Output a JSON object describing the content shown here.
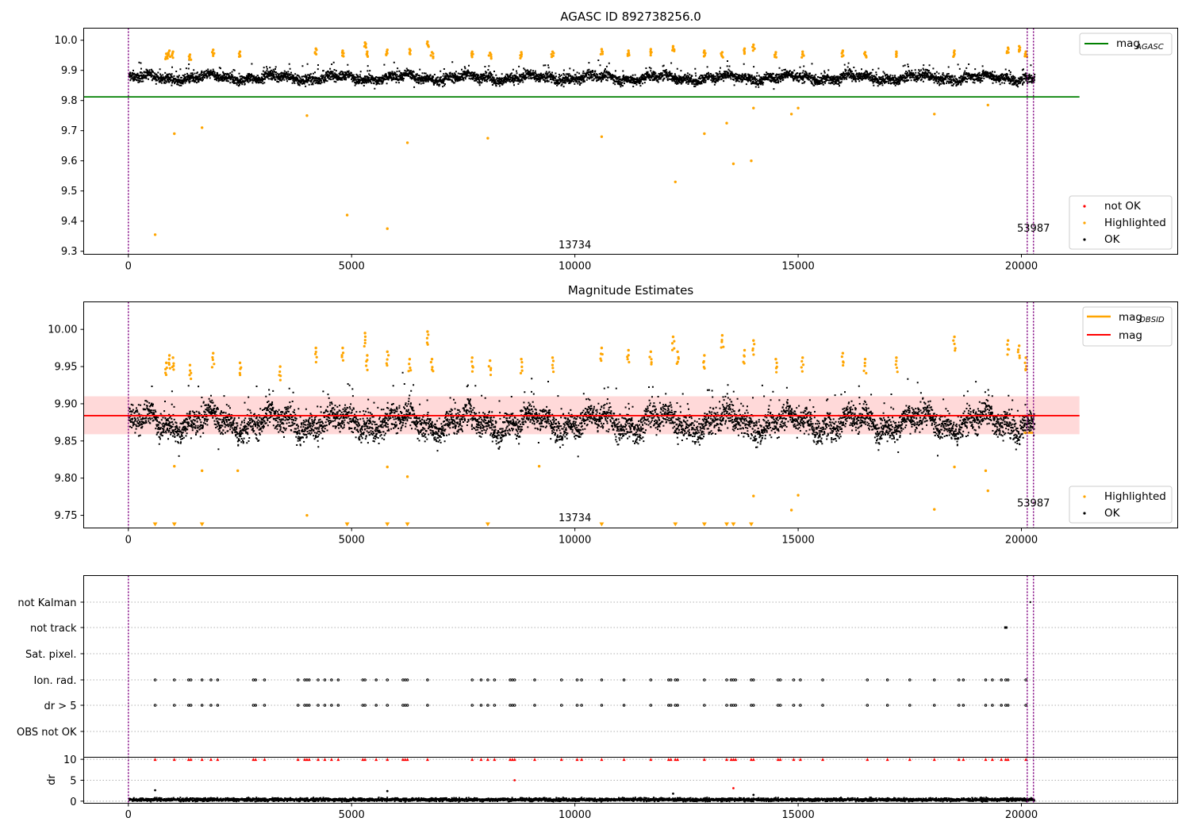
{
  "chart_data": [
    {
      "type": "scatter",
      "title": "AGASC ID 892738256.0",
      "xlim": [
        -1000,
        23500
      ],
      "ylim": [
        9.29,
        10.04
      ],
      "x_ticks": [
        "0",
        "5000",
        "10000",
        "15000",
        "20000"
      ],
      "x_tick_values": [
        0,
        5000,
        10000,
        15000,
        20000
      ],
      "y_ticks": [
        "9.3",
        "9.4",
        "9.5",
        "9.6",
        "9.7",
        "9.8",
        "9.9",
        "10.0"
      ],
      "y_tick_values": [
        9.3,
        9.4,
        9.5,
        9.6,
        9.7,
        9.8,
        9.9,
        10.0
      ],
      "agasc_mag": 9.812,
      "agasc_mag_xrange": [
        -1000,
        21300
      ],
      "vlines": [
        0,
        20130,
        20270
      ],
      "annotations": [
        {
          "text": "13734",
          "x": 10000,
          "y": 9.31
        },
        {
          "text": "53987",
          "x": 20270,
          "y": 9.365
        }
      ],
      "legend_line": {
        "label_main": "mag",
        "label_sub": "AGASC",
        "color": "#008000"
      },
      "legend_points": [
        {
          "label": "not OK",
          "color": "#ff0000"
        },
        {
          "label": "Highlighted",
          "color": "#ffa500"
        },
        {
          "label": "OK",
          "color": "#000000"
        }
      ],
      "band": {
        "x": [
          0,
          20280
        ],
        "center": 9.878,
        "spread": 0.026,
        "wave": 0.008
      },
      "highlight_outliers": [
        [
          600,
          9.355
        ],
        [
          1030,
          9.69
        ],
        [
          1650,
          9.71
        ],
        [
          4000,
          9.75
        ],
        [
          4900,
          9.42
        ],
        [
          5800,
          9.375
        ],
        [
          6250,
          9.66
        ],
        [
          8050,
          9.675
        ],
        [
          10600,
          9.68
        ],
        [
          12250,
          9.53
        ],
        [
          12900,
          9.69
        ],
        [
          13400,
          9.725
        ],
        [
          13550,
          9.59
        ],
        [
          13950,
          9.6
        ],
        [
          14000,
          9.775
        ],
        [
          14850,
          9.755
        ],
        [
          15000,
          9.775
        ],
        [
          18050,
          9.755
        ],
        [
          19250,
          9.785
        ]
      ],
      "highlight_top": [
        [
          850,
          9.955
        ],
        [
          920,
          9.965
        ],
        [
          1000,
          9.962
        ],
        [
          1380,
          9.952
        ],
        [
          1900,
          9.968
        ],
        [
          2500,
          9.962
        ],
        [
          4200,
          9.972
        ],
        [
          4800,
          9.965
        ],
        [
          5300,
          9.992
        ],
        [
          5350,
          9.962
        ],
        [
          5800,
          9.968
        ],
        [
          6300,
          9.97
        ],
        [
          6700,
          9.995
        ],
        [
          6800,
          9.96
        ],
        [
          7700,
          9.962
        ],
        [
          8100,
          9.958
        ],
        [
          8800,
          9.96
        ],
        [
          9500,
          9.962
        ],
        [
          10600,
          9.97
        ],
        [
          11200,
          9.965
        ],
        [
          11700,
          9.97
        ],
        [
          12200,
          9.98
        ],
        [
          12900,
          9.965
        ],
        [
          13300,
          9.96
        ],
        [
          13800,
          9.972
        ],
        [
          14000,
          9.985
        ],
        [
          14500,
          9.96
        ],
        [
          15100,
          9.962
        ],
        [
          16000,
          9.965
        ],
        [
          16500,
          9.96
        ],
        [
          17200,
          9.962
        ],
        [
          18500,
          9.965
        ],
        [
          19700,
          9.975
        ],
        [
          19950,
          9.98
        ],
        [
          20100,
          9.962
        ]
      ]
    },
    {
      "type": "scatter",
      "title": "Magnitude Estimates",
      "xlim": [
        -1000,
        23500
      ],
      "ylim": [
        9.733,
        10.037
      ],
      "x_ticks": [
        "0",
        "5000",
        "10000",
        "15000",
        "20000"
      ],
      "x_tick_values": [
        0,
        5000,
        10000,
        15000,
        20000
      ],
      "y_ticks": [
        "9.75",
        "9.80",
        "9.85",
        "9.90",
        "9.95",
        "10.00"
      ],
      "y_tick_values": [
        9.75,
        9.8,
        9.85,
        9.9,
        9.95,
        10.0
      ],
      "mean_mag": 9.884,
      "mean_band": [
        9.859,
        9.91
      ],
      "mean_xrange": [
        -1000,
        21300
      ],
      "obsid_mag_segments": [
        [
          20050,
          20270,
          9.861
        ]
      ],
      "vlines": [
        0,
        20130,
        20270
      ],
      "annotations": [
        {
          "text": "13734",
          "x": 10000,
          "y": 9.742
        },
        {
          "text": "53987",
          "x": 20270,
          "y": 9.762
        }
      ],
      "legend_lines": [
        {
          "label_main": "mag",
          "label_sub": "OBSID",
          "color": "#ffa500"
        },
        {
          "label_main": "mag",
          "label_sub": "",
          "color": "#ff0000"
        }
      ],
      "legend_points": [
        {
          "label": "Highlighted",
          "color": "#ffa500"
        },
        {
          "label": "OK",
          "color": "#000000"
        }
      ],
      "band": {
        "x": [
          0,
          20280
        ],
        "center": 9.876,
        "spread": 0.028,
        "wave": 0.01
      },
      "highlight_outliers": [
        [
          1030,
          9.816
        ],
        [
          1650,
          9.81
        ],
        [
          2450,
          9.81
        ],
        [
          4000,
          9.75
        ],
        [
          5800,
          9.815
        ],
        [
          6250,
          9.802
        ],
        [
          9200,
          9.816
        ],
        [
          14000,
          9.776
        ],
        [
          14850,
          9.757
        ],
        [
          15000,
          9.777
        ],
        [
          18050,
          9.758
        ],
        [
          18500,
          9.815
        ],
        [
          19200,
          9.81
        ],
        [
          19250,
          9.783
        ]
      ],
      "lower_markers_x": [
        600,
        1030,
        1650,
        4900,
        5800,
        6250,
        8050,
        10600,
        12250,
        12900,
        13400,
        13550,
        13950
      ],
      "highlight_top": [
        [
          850,
          9.955
        ],
        [
          920,
          9.965
        ],
        [
          1000,
          9.962
        ],
        [
          1380,
          9.952
        ],
        [
          1900,
          9.968
        ],
        [
          2500,
          9.955
        ],
        [
          3400,
          9.95
        ],
        [
          4200,
          9.975
        ],
        [
          4800,
          9.975
        ],
        [
          5300,
          9.995
        ],
        [
          5350,
          9.965
        ],
        [
          5800,
          9.97
        ],
        [
          6300,
          9.96
        ],
        [
          6700,
          9.997
        ],
        [
          6800,
          9.96
        ],
        [
          7700,
          9.962
        ],
        [
          8100,
          9.958
        ],
        [
          8800,
          9.96
        ],
        [
          9500,
          9.962
        ],
        [
          10600,
          9.975
        ],
        [
          11200,
          9.972
        ],
        [
          11700,
          9.97
        ],
        [
          12200,
          9.99
        ],
        [
          12300,
          9.97
        ],
        [
          12900,
          9.965
        ],
        [
          13300,
          9.992
        ],
        [
          13800,
          9.972
        ],
        [
          14000,
          9.985
        ],
        [
          14500,
          9.96
        ],
        [
          15100,
          9.962
        ],
        [
          16000,
          9.968
        ],
        [
          16500,
          9.96
        ],
        [
          17200,
          9.962
        ],
        [
          18500,
          9.99
        ],
        [
          19700,
          9.985
        ],
        [
          19950,
          9.978
        ],
        [
          20100,
          9.962
        ]
      ]
    },
    {
      "type": "scatter",
      "title": "",
      "xlim": [
        -1000,
        23500
      ],
      "categories": [
        "not Kalman",
        "not track",
        "Sat. pixel.",
        "Ion. rad.",
        "dr > 5",
        "OBS not OK"
      ],
      "flag_x": [
        600,
        1030,
        1350,
        1400,
        1650,
        1850,
        2000,
        2800,
        2850,
        3050,
        3800,
        3950,
        4000,
        4050,
        4250,
        4400,
        4550,
        4700,
        5250,
        5300,
        5550,
        5800,
        6150,
        6200,
        6250,
        6700,
        7700,
        7900,
        8050,
        8200,
        8550,
        8600,
        8650,
        9100,
        9700,
        10050,
        10150,
        10600,
        11100,
        11700,
        12100,
        12150,
        12250,
        12300,
        12900,
        13400,
        13500,
        13550,
        13600,
        13950,
        14000,
        14550,
        14600,
        14900,
        15050,
        15550,
        16550,
        17000,
        17500,
        18050,
        18600,
        18700,
        19200,
        19350,
        19550,
        19650,
        19700,
        20100
      ],
      "not_track_x": [
        19650
      ],
      "not_kalman_x": [
        20200
      ],
      "dr_ylim": [
        -0.5,
        10.5
      ],
      "dr_ticks": [
        "0",
        "5",
        "10"
      ],
      "dr_tick_values": [
        0,
        5,
        10
      ],
      "dr_label": "dr",
      "dr_outliers": [
        [
          600,
          2.6
        ],
        [
          5800,
          2.4
        ],
        [
          8650,
          5.0
        ],
        [
          12200,
          1.8
        ],
        [
          13550,
          3.1
        ],
        [
          14000,
          1.5
        ]
      ],
      "dr_band": {
        "x": [
          0,
          20280
        ],
        "center": 0.55,
        "spread": 0.35
      },
      "x_ticks": [
        "0",
        "5000",
        "10000",
        "15000",
        "20000"
      ],
      "x_tick_values": [
        0,
        5000,
        10000,
        15000,
        20000
      ]
    }
  ]
}
